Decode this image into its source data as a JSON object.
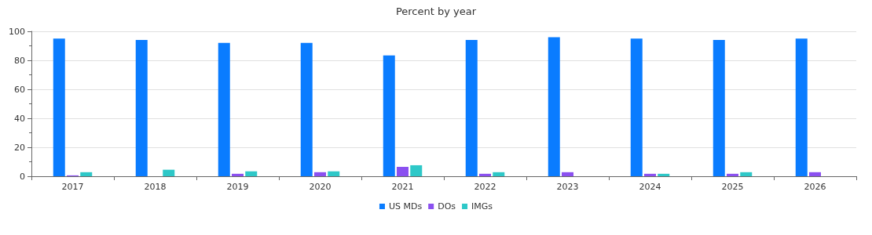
{
  "chart_data": {
    "type": "bar",
    "title": "Percent by year",
    "categories": [
      "2017",
      "2018",
      "2019",
      "2020",
      "2021",
      "2022",
      "2023",
      "2024",
      "2025",
      "2026"
    ],
    "series": [
      {
        "name": "US MDs",
        "color": "#0a7cff",
        "values": [
          95,
          94,
          92,
          92,
          83.4,
          94,
          96,
          95,
          94,
          95
        ]
      },
      {
        "name": "DOs",
        "color": "#8b50f0",
        "values": [
          0.6,
          0,
          1.7,
          2.8,
          6.5,
          1.7,
          2.8,
          1.7,
          1.7,
          2.8
        ]
      },
      {
        "name": "IMGs",
        "color": "#2ec8c8",
        "values": [
          2.8,
          4.5,
          3.4,
          3.4,
          7.6,
          2.8,
          0,
          1.7,
          2.8,
          0
        ]
      }
    ],
    "ylim": [
      0,
      100
    ],
    "yticks": [
      0,
      20,
      40,
      60,
      80,
      100
    ],
    "grid": "y",
    "legend": "bottom"
  }
}
